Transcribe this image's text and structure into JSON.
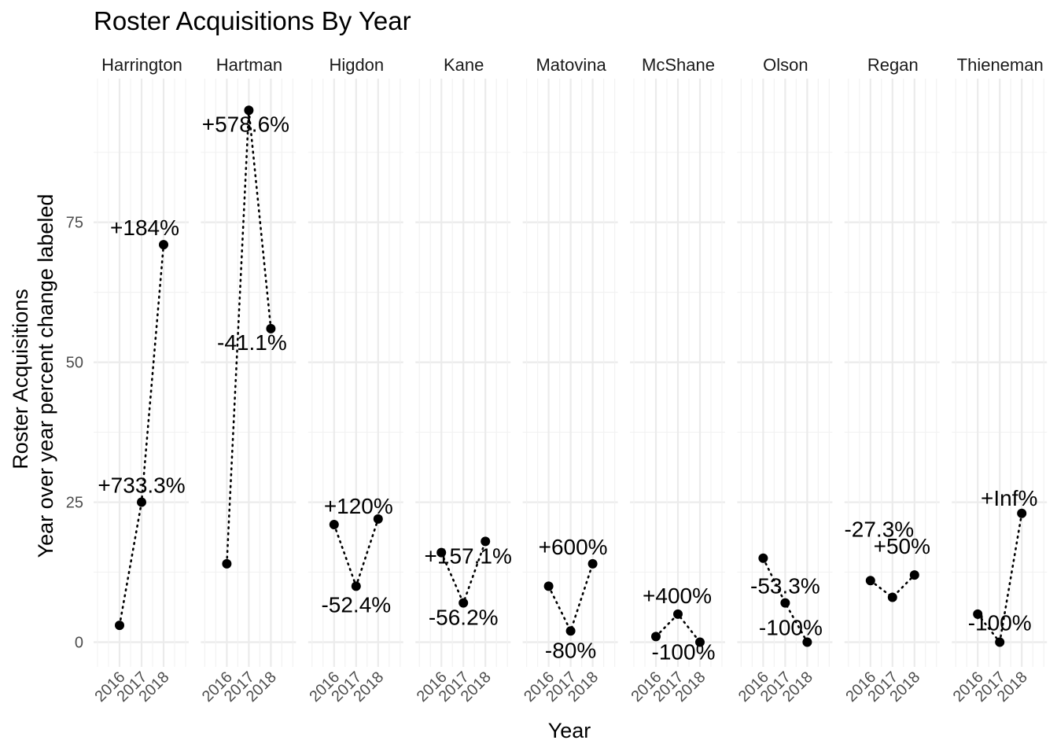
{
  "chart_data": {
    "type": "line",
    "title": "Roster Acquisitions By Year",
    "xlabel": "Year",
    "ylabel_line1": "Roster Acquisitions",
    "ylabel_line2": "Year over year percent change labeled",
    "x": [
      "2016",
      "2017",
      "2018"
    ],
    "ylim": [
      -5,
      97
    ],
    "yticks": [
      0,
      25,
      50,
      75
    ],
    "ytick_labels": [
      "0",
      "25",
      "50",
      "75"
    ],
    "line_style": "dotted",
    "grid": true,
    "facets": [
      {
        "name": "Harrington",
        "values": [
          3,
          25,
          71
        ],
        "labels": [
          "",
          "+733.3%",
          "+184%"
        ]
      },
      {
        "name": "Hartman",
        "values": [
          14,
          95,
          56
        ],
        "labels": [
          "",
          "+578.6%",
          "-41.1%"
        ]
      },
      {
        "name": "Higdon",
        "values": [
          21,
          10,
          22
        ],
        "labels": [
          "",
          "-52.4%",
          "+120%"
        ]
      },
      {
        "name": "Kane",
        "values": [
          16,
          7,
          18
        ],
        "labels": [
          "",
          "-56.2%",
          "+157.1%"
        ]
      },
      {
        "name": "Matovina",
        "values": [
          10,
          2,
          14
        ],
        "labels": [
          "",
          "-80%",
          "+600%"
        ]
      },
      {
        "name": "McShane",
        "values": [
          1,
          5,
          0
        ],
        "labels": [
          "",
          "+400%",
          "-100%"
        ]
      },
      {
        "name": "Olson",
        "values": [
          15,
          7,
          0
        ],
        "labels": [
          "",
          "-53.3%",
          "-100%"
        ]
      },
      {
        "name": "Regan",
        "values": [
          11,
          8,
          12
        ],
        "labels": [
          "",
          "-27.3%",
          "+50%"
        ]
      },
      {
        "name": "Thieneman",
        "values": [
          5,
          0,
          23
        ],
        "labels": [
          "",
          "-100%",
          "+Inf%"
        ]
      }
    ]
  }
}
